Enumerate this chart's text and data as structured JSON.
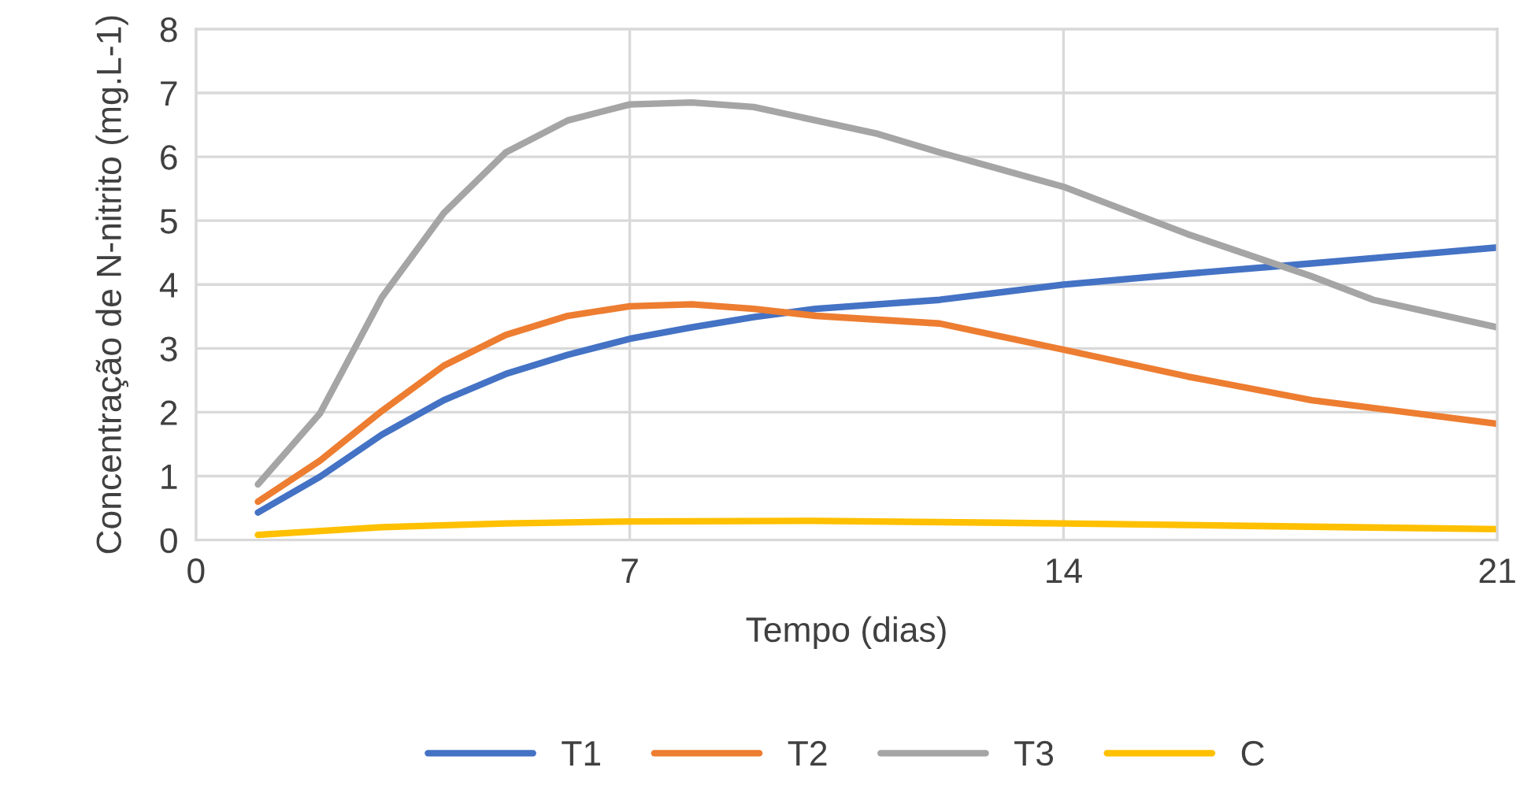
{
  "chart_data": {
    "type": "line",
    "xlabel": "Tempo (dias)",
    "ylabel": "Concentração de N-nitrito (mg.L-1)",
    "xlim": [
      0,
      21
    ],
    "xticks": [
      0,
      7,
      14,
      21
    ],
    "ylim": [
      0,
      8
    ],
    "yticks": [
      0,
      1,
      2,
      3,
      4,
      5,
      6,
      7,
      8
    ],
    "grid": true,
    "legend": "bottom",
    "marker": "none",
    "line_style": "solid",
    "series": [
      {
        "name": "T1",
        "color": "#4472c4",
        "x": [
          1,
          2,
          3,
          4,
          5,
          6,
          7,
          8,
          9,
          10,
          12,
          14,
          16,
          18,
          21
        ],
        "values": [
          0.43,
          0.99,
          1.65,
          2.19,
          2.6,
          2.9,
          3.15,
          3.33,
          3.49,
          3.62,
          3.76,
          4.0,
          4.17,
          4.33,
          4.58
        ]
      },
      {
        "name": "T2",
        "color": "#ed7d31",
        "x": [
          1,
          2,
          3,
          4,
          5,
          6,
          7,
          8,
          9,
          10,
          12,
          14,
          16,
          18,
          21
        ],
        "values": [
          0.6,
          1.24,
          2.02,
          2.73,
          3.21,
          3.51,
          3.66,
          3.69,
          3.62,
          3.51,
          3.39,
          2.98,
          2.56,
          2.19,
          1.82
        ]
      },
      {
        "name": "T3",
        "color": "#a5a5a5",
        "x": [
          1,
          2,
          3,
          4,
          5,
          6,
          7,
          8,
          9,
          10,
          11,
          12,
          14,
          16,
          18,
          19,
          21
        ],
        "values": [
          0.87,
          1.98,
          3.8,
          5.12,
          6.07,
          6.57,
          6.82,
          6.85,
          6.78,
          6.57,
          6.36,
          6.07,
          5.53,
          4.79,
          4.13,
          3.76,
          3.33
        ]
      },
      {
        "name": "C",
        "color": "#ffc000",
        "x": [
          1,
          3,
          5,
          7,
          10,
          14,
          17,
          21
        ],
        "values": [
          0.08,
          0.2,
          0.26,
          0.29,
          0.3,
          0.26,
          0.22,
          0.17
        ]
      }
    ]
  }
}
